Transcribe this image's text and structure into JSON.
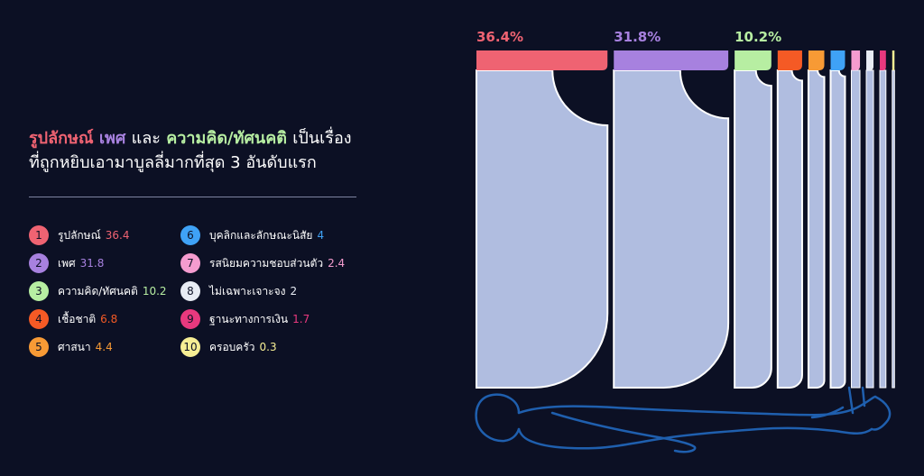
{
  "headline": {
    "part1": "รูปลักษณ์",
    "part2": "เพศ",
    "part3": "และ",
    "part4": "ความคิด/ทัศนคติ",
    "part5": "เป็นเรื่อง",
    "line2": "ที่ถูกหยิบเอามาบูลลี่มากที่สุด 3 อันดับแรก"
  },
  "colors": {
    "background": "#0c1024",
    "bar_body": "#b0bde0",
    "outline": "#1f5fae"
  },
  "chart_data": {
    "type": "bar",
    "unit": "%",
    "items": [
      {
        "rank": "1",
        "label": "รูปลักษณ์",
        "value": 36.4,
        "value_text": "36.4",
        "top_label": "36.4%",
        "color": "#ef6372"
      },
      {
        "rank": "2",
        "label": "เพศ",
        "value": 31.8,
        "value_text": "31.8",
        "top_label": "31.8%",
        "color": "#a781df"
      },
      {
        "rank": "3",
        "label": "ความคิด/ทัศนคติ",
        "value": 10.2,
        "value_text": "10.2",
        "top_label": "10.2%",
        "color": "#b7eea2"
      },
      {
        "rank": "4",
        "label": "เชื้อชาติ",
        "value": 6.8,
        "value_text": "6.8",
        "top_label": "",
        "color": "#f55a25"
      },
      {
        "rank": "5",
        "label": "ศาสนา",
        "value": 4.4,
        "value_text": "4.4",
        "top_label": "",
        "color": "#f79a35"
      },
      {
        "rank": "6",
        "label": "บุคลิกและลักษณะนิสัย",
        "value": 4,
        "value_text": "4",
        "top_label": "",
        "color": "#3fa2f6"
      },
      {
        "rank": "7",
        "label": "รสนิยมความชอบส่วนตัว",
        "value": 2.4,
        "value_text": "2.4",
        "top_label": "",
        "color": "#f59ccf"
      },
      {
        "rank": "8",
        "label": "ไม่เฉพาะเจาะจง",
        "value": 2,
        "value_text": "2",
        "top_label": "",
        "color": "#e8ecf4"
      },
      {
        "rank": "9",
        "label": "ฐานะทางการเงิน",
        "value": 1.7,
        "value_text": "1.7",
        "top_label": "",
        "color": "#e8397e"
      },
      {
        "rank": "10",
        "label": "ครอบครัว",
        "value": 0.3,
        "value_text": "0.3",
        "top_label": "",
        "color": "#f6ee94"
      }
    ]
  }
}
